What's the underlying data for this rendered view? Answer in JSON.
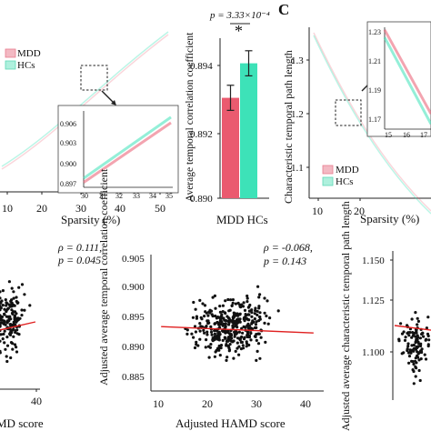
{
  "colors": {
    "mdd": "#ea5a6f",
    "hcs": "#3de2b8",
    "regression": "#e02020",
    "point": "#111111",
    "axis": "#222222"
  },
  "chart_data": [
    {
      "id": "A",
      "type": "line",
      "xlabel": "Sparsity (%)",
      "ylabel": "",
      "xticks": [
        "10",
        "20",
        "30",
        "40",
        "50"
      ],
      "xlim": [
        3,
        52
      ],
      "legend": [
        "MDD",
        "HCs"
      ],
      "legend_position": "top-left",
      "series": [
        {
          "name": "MDD",
          "x": [
            3,
            10,
            20,
            30,
            40,
            50
          ],
          "y": [
            0.873,
            0.88,
            0.888,
            0.897,
            0.901,
            0.905
          ]
        },
        {
          "name": "HCs",
          "x": [
            3,
            10,
            20,
            30,
            40,
            50
          ],
          "y": [
            0.875,
            0.882,
            0.89,
            0.8975,
            0.9015,
            0.9055
          ]
        }
      ],
      "inset": {
        "xticks": [
          "30",
          "31",
          "32",
          "33",
          "34",
          "35"
        ],
        "yticks": [
          "0.897",
          "0.900",
          "0.903",
          "0.906"
        ],
        "xlim": [
          30,
          35
        ],
        "ylim": [
          0.8965,
          0.9075
        ],
        "series": [
          {
            "name": "MDD",
            "x": [
              30,
              35
            ],
            "y": [
              0.8972,
              0.9058
            ]
          },
          {
            "name": "HCs",
            "x": [
              30,
              35
            ],
            "y": [
              0.8978,
              0.9066
            ]
          }
        ]
      }
    },
    {
      "id": "B",
      "type": "bar",
      "categories": [
        "MDD",
        "HCs"
      ],
      "category_label": "MDD HCs",
      "values": [
        0.8931,
        0.8942
      ],
      "errors": [
        0.0004,
        0.0004
      ],
      "ylabel": "Average temporal correlation coefficient",
      "yticks": [
        "0.890",
        "0.892",
        "0.894"
      ],
      "ylim": [
        0.8899,
        0.895
      ],
      "annotation": "p = 3.33×10⁻⁴",
      "significance": "*"
    },
    {
      "id": "C",
      "panel_letter": "C",
      "type": "line",
      "xlabel": "Sparsity (%)",
      "ylabel": "Characteristic temporal path length",
      "xticks": [
        "10",
        "20"
      ],
      "yticks": [
        "1.1",
        "1.2",
        "1.3"
      ],
      "xlim": [
        7,
        30
      ],
      "ylim": [
        1.05,
        1.38
      ],
      "legend": [
        "MDD",
        "HCs"
      ],
      "legend_position": "bottom-left",
      "series": [
        {
          "name": "MDD",
          "x": [
            8,
            12,
            16,
            20,
            25,
            30
          ],
          "y": [
            1.33,
            1.25,
            1.18,
            1.13,
            1.09,
            1.06
          ]
        },
        {
          "name": "HCs",
          "x": [
            8,
            12,
            16,
            20,
            25,
            30
          ],
          "y": [
            1.32,
            1.24,
            1.17,
            1.12,
            1.08,
            1.05
          ]
        }
      ],
      "inset": {
        "xticks": [
          "15",
          "16",
          "17"
        ],
        "yticks": [
          "1.23",
          "1.21",
          "1.19",
          "1.17"
        ],
        "xlim": [
          15,
          17.6
        ],
        "ylim": [
          1.16,
          1.24
        ],
        "series": [
          {
            "name": "MDD",
            "x": [
              15,
              17.6
            ],
            "y": [
              1.238,
              1.172
            ]
          },
          {
            "name": "HCs",
            "x": [
              15,
              17.6
            ],
            "y": [
              1.232,
              1.164
            ]
          }
        ]
      }
    },
    {
      "id": "D",
      "type": "scatter",
      "xlabel": "MD score",
      "xticks": [
        "40"
      ],
      "xlim": [
        4,
        42
      ],
      "ylim": [
        0,
        1
      ],
      "annotation": [
        "ρ = 0.111,",
        "p = 0.045"
      ],
      "regression": {
        "x": [
          4,
          41
        ],
        "y": [
          0.44,
          0.5
        ]
      }
    },
    {
      "id": "E",
      "type": "scatter",
      "xlabel": "Adjusted HAMD score",
      "ylabel": "Adjusted average temporal correlation coefficient",
      "xticks": [
        "10",
        "20",
        "30",
        "40"
      ],
      "yticks": [
        "0.885",
        "0.890",
        "0.895",
        "0.900",
        "0.905"
      ],
      "xlim": [
        8,
        42
      ],
      "ylim": [
        0.883,
        0.9065
      ],
      "annotation": [
        "ρ = -0.068,",
        "p = 0.143"
      ],
      "regression": {
        "x": [
          10,
          40
        ],
        "y": [
          0.8941,
          0.893
        ]
      }
    },
    {
      "id": "F",
      "type": "scatter",
      "ylabel": "Adjusted average characteristic temporal path length",
      "yticks": [
        "1.100",
        "1.125",
        "1.150"
      ],
      "ylim": [
        1.068,
        1.165
      ],
      "regression": {
        "x": [
          0,
          1
        ],
        "y": [
          1.1165,
          1.1135
        ]
      }
    }
  ]
}
